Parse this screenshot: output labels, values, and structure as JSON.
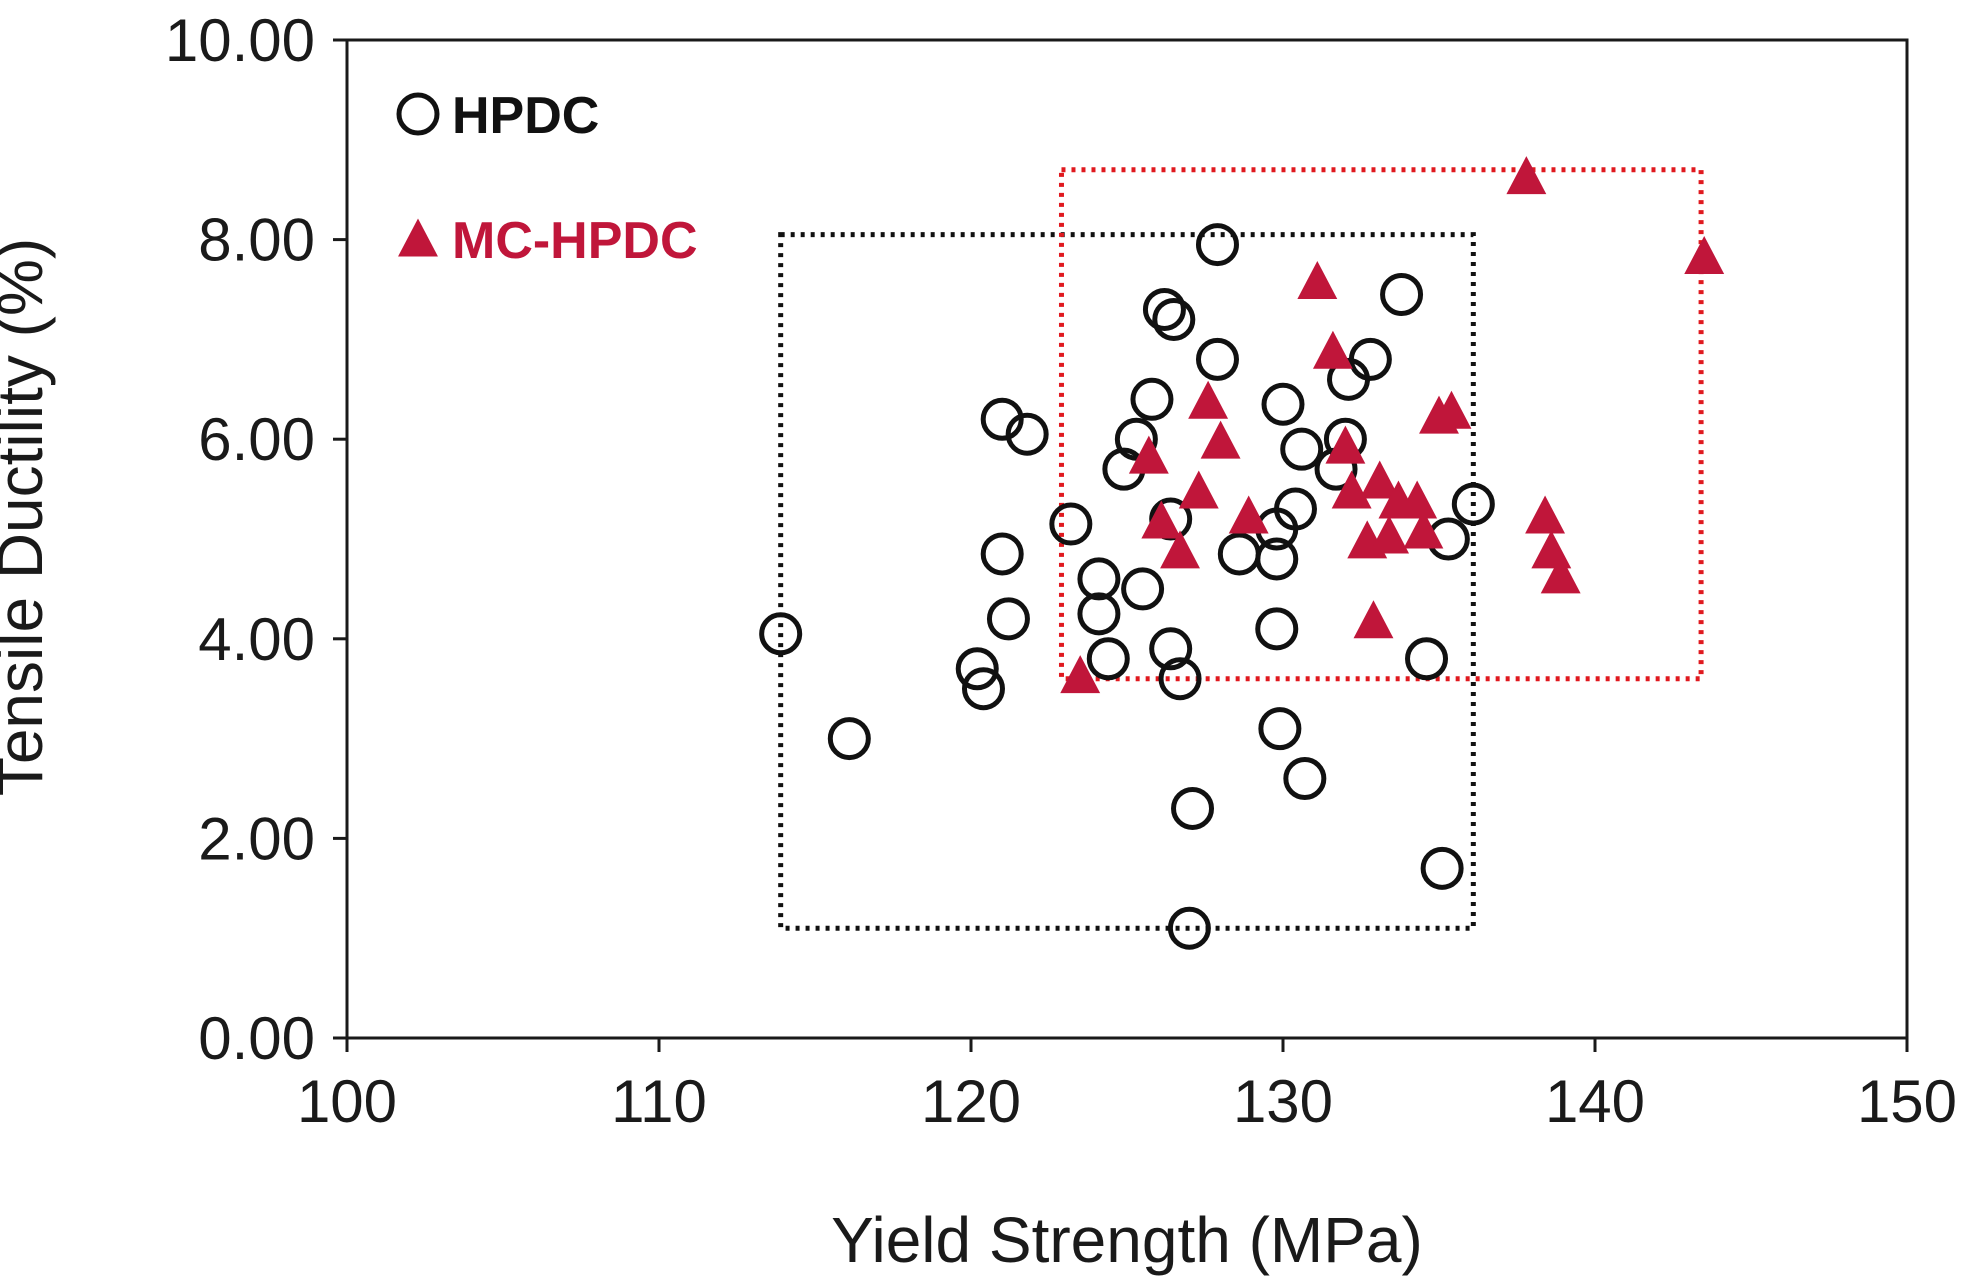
{
  "chart_data": {
    "type": "scatter",
    "title": "",
    "xlabel": "Yield Strength (MPa)",
    "ylabel": "Tensile Ductility (%)",
    "xlim": [
      100,
      150
    ],
    "ylim": [
      0,
      10
    ],
    "xticks": [
      100,
      110,
      120,
      130,
      140,
      150
    ],
    "yticks": [
      0,
      2,
      4,
      6,
      8,
      10
    ],
    "xtick_labels": [
      "100",
      "110",
      "120",
      "130",
      "140",
      "150"
    ],
    "ytick_labels": [
      "0.00",
      "2.00",
      "4.00",
      "6.00",
      "8.00",
      "10.00"
    ],
    "grid": false,
    "legend_position": "top-left",
    "series": [
      {
        "name": "HPDC",
        "marker": "open-circle",
        "color": "#111111",
        "points": [
          [
            113.9,
            4.05
          ],
          [
            116.1,
            3.0
          ],
          [
            120.2,
            3.7
          ],
          [
            120.4,
            3.5
          ],
          [
            121.2,
            4.2
          ],
          [
            121.0,
            4.85
          ],
          [
            121.0,
            6.2
          ],
          [
            121.8,
            6.05
          ],
          [
            123.2,
            5.15
          ],
          [
            124.1,
            4.6
          ],
          [
            124.1,
            4.25
          ],
          [
            124.4,
            3.8
          ],
          [
            124.9,
            5.7
          ],
          [
            125.3,
            6.0
          ],
          [
            125.5,
            4.5
          ],
          [
            125.8,
            6.4
          ],
          [
            126.2,
            7.3
          ],
          [
            126.5,
            7.2
          ],
          [
            126.4,
            5.2
          ],
          [
            126.4,
            3.9
          ],
          [
            126.7,
            3.6
          ],
          [
            127.1,
            2.3
          ],
          [
            127.0,
            1.1
          ],
          [
            127.9,
            6.8
          ],
          [
            127.9,
            7.95
          ],
          [
            128.6,
            4.85
          ],
          [
            129.8,
            4.8
          ],
          [
            129.8,
            5.1
          ],
          [
            129.8,
            4.1
          ],
          [
            129.9,
            3.1
          ],
          [
            130.0,
            6.35
          ],
          [
            130.4,
            5.3
          ],
          [
            130.6,
            5.9
          ],
          [
            130.7,
            2.6
          ],
          [
            131.7,
            5.7
          ],
          [
            132.0,
            6.0
          ],
          [
            132.1,
            6.6
          ],
          [
            132.8,
            6.8
          ],
          [
            133.8,
            7.45
          ],
          [
            134.6,
            3.8
          ],
          [
            135.3,
            5.0
          ],
          [
            135.1,
            1.7
          ],
          [
            136.1,
            5.35
          ]
        ]
      },
      {
        "name": "MC-HPDC",
        "marker": "filled-triangle",
        "color": "#c0163a",
        "points": [
          [
            123.5,
            3.6
          ],
          [
            125.7,
            5.8
          ],
          [
            126.1,
            5.15
          ],
          [
            126.7,
            4.85
          ],
          [
            127.3,
            5.45
          ],
          [
            127.6,
            6.35
          ],
          [
            128.0,
            5.95
          ],
          [
            128.9,
            5.2
          ],
          [
            131.1,
            7.55
          ],
          [
            131.6,
            6.85
          ],
          [
            132.0,
            5.9
          ],
          [
            132.2,
            5.45
          ],
          [
            132.7,
            4.95
          ],
          [
            132.9,
            4.15
          ],
          [
            133.1,
            5.55
          ],
          [
            133.4,
            5.0
          ],
          [
            133.7,
            5.35
          ],
          [
            134.3,
            5.35
          ],
          [
            134.5,
            5.05
          ],
          [
            135.0,
            6.2
          ],
          [
            135.4,
            6.25
          ],
          [
            137.8,
            8.6
          ],
          [
            138.4,
            5.2
          ],
          [
            138.6,
            4.85
          ],
          [
            138.9,
            4.6
          ],
          [
            143.5,
            7.8
          ]
        ]
      }
    ],
    "annotations": [
      {
        "type": "dotted-box",
        "series": "HPDC",
        "color": "#111111",
        "x_range": [
          113.9,
          136.1
        ],
        "y_range": [
          1.1,
          8.05
        ]
      },
      {
        "type": "dotted-box",
        "series": "MC-HPDC",
        "color": "#e0191f",
        "x_range": [
          122.9,
          143.4
        ],
        "y_range": [
          3.6,
          8.7
        ]
      }
    ]
  }
}
